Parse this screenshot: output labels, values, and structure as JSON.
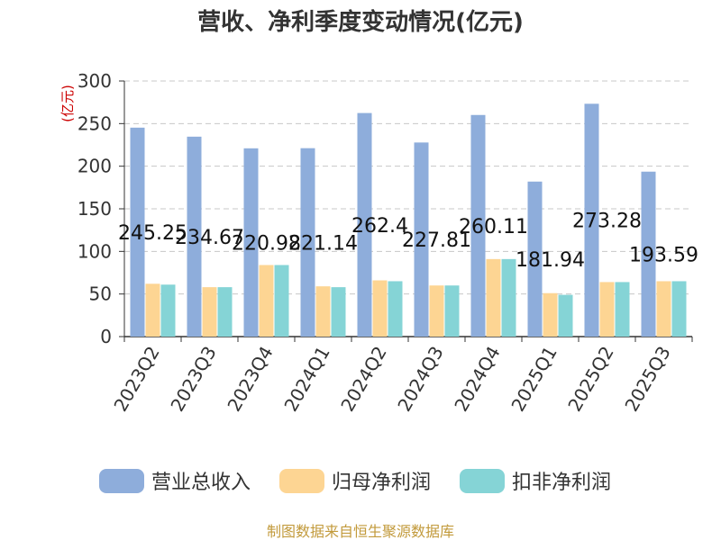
{
  "chart_data": {
    "type": "bar",
    "title": "营收、净利季度变动情况(亿元)",
    "ylabel": "(亿元)",
    "xlabel": "",
    "ylim": [
      0,
      300
    ],
    "yticks": [
      0,
      50,
      100,
      150,
      200,
      250,
      300
    ],
    "grid": true,
    "legend_position": "bottom",
    "categories": [
      "2023Q2",
      "2023Q3",
      "2023Q4",
      "2024Q1",
      "2024Q2",
      "2024Q3",
      "2024Q4",
      "2025Q1",
      "2025Q2",
      "2025Q3"
    ],
    "series": [
      {
        "name": "营业总收入",
        "color": "#8eaddb",
        "values": [
          245.25,
          234.67,
          220.98,
          221.14,
          262.4,
          227.81,
          260.11,
          181.94,
          273.28,
          193.59
        ],
        "labels": [
          "245.25",
          "234.67",
          "220.98",
          "221.14",
          "262.4",
          "227.81",
          "260.11",
          "181.94",
          "273.28",
          "193.59"
        ]
      },
      {
        "name": "归母净利润",
        "color": "#fdd593",
        "values": [
          62,
          58,
          84,
          59,
          66,
          60,
          91,
          51,
          64,
          65
        ]
      },
      {
        "name": "扣非净利润",
        "color": "#85d4d6",
        "values": [
          61,
          58,
          84,
          58,
          65,
          60,
          91,
          49,
          64,
          65
        ]
      }
    ]
  },
  "footer": {
    "source": "制图数据来自恒生聚源数据库"
  }
}
